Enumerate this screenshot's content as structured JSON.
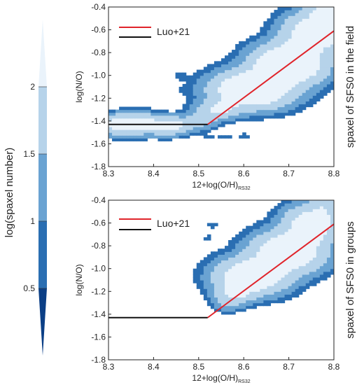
{
  "colorbar": {
    "label": "log(spaxel number)",
    "ticks": [
      "0.5",
      "1",
      "1.5",
      "2"
    ],
    "levels": [
      0.5,
      1,
      1.5,
      2
    ],
    "range": [
      0.0,
      2.5
    ],
    "colors": [
      "#0b3f86",
      "#2a6eb2",
      "#6aa3d2",
      "#b6d3ea",
      "#eaf3fb"
    ]
  },
  "chart_data": [
    {
      "type": "heatmap",
      "panel": "top",
      "side_label": "spaxel of SFS0 in the field",
      "xlabel_main": "12+log(O/H)",
      "xlabel_sub": "RS32",
      "ylabel": "log(N/O)",
      "xlim": [
        8.3,
        8.8
      ],
      "ylim": [
        -1.8,
        -0.4
      ],
      "xticks": [
        "8.3",
        "8.4",
        "8.5",
        "8.6",
        "8.7",
        "8.8"
      ],
      "yticks": [
        "-1.8",
        "-1.6",
        "-1.4",
        "-1.2",
        "-1.0",
        "-0.8",
        "-0.6",
        "-0.4"
      ],
      "legend": {
        "red_label": "",
        "black_label": "Luo+21"
      },
      "lines": {
        "red": [
          [
            8.52,
            -1.43
          ],
          [
            8.8,
            -0.61
          ]
        ],
        "black": [
          [
            8.3,
            -1.43
          ],
          [
            8.52,
            -1.43
          ]
        ]
      },
      "ridge": [
        [
          8.32,
          -1.41
        ],
        [
          8.38,
          -1.4
        ],
        [
          8.44,
          -1.43
        ],
        [
          8.5,
          -1.4
        ],
        [
          8.55,
          -1.28
        ],
        [
          8.6,
          -1.15
        ],
        [
          8.65,
          -1.0
        ],
        [
          8.7,
          -0.84
        ],
        [
          8.74,
          -0.7
        ],
        [
          8.78,
          -0.56
        ],
        [
          8.8,
          -0.47
        ]
      ],
      "blobs": [
        {
          "x": 8.34,
          "y": -1.43,
          "sx": 0.035,
          "sy": 0.05,
          "a": 170
        },
        {
          "x": 8.43,
          "y": -1.44,
          "sx": 0.03,
          "sy": 0.045,
          "a": 110
        },
        {
          "x": 8.62,
          "y": -1.12,
          "sx": 0.05,
          "sy": 0.09,
          "a": 300
        },
        {
          "x": 8.7,
          "y": -0.9,
          "sx": 0.045,
          "sy": 0.1,
          "a": 320
        },
        {
          "x": 8.76,
          "y": -0.62,
          "sx": 0.04,
          "sy": 0.1,
          "a": 220
        },
        {
          "x": 8.78,
          "y": -0.42,
          "sx": 0.025,
          "sy": 0.05,
          "a": 110
        },
        {
          "x": 8.54,
          "y": -1.3,
          "sx": 0.03,
          "sy": 0.05,
          "a": 70
        },
        {
          "x": 8.46,
          "y": -1.01,
          "sx": 0.01,
          "sy": 0.02,
          "a": 8
        },
        {
          "x": 8.47,
          "y": -1.13,
          "sx": 0.01,
          "sy": 0.02,
          "a": 6
        },
        {
          "x": 8.56,
          "y": -1.54,
          "sx": 0.012,
          "sy": 0.02,
          "a": 6
        },
        {
          "x": 8.52,
          "y": -1.54,
          "sx": 0.01,
          "sy": 0.02,
          "a": 5
        },
        {
          "x": 8.6,
          "y": -1.53,
          "sx": 0.01,
          "sy": 0.02,
          "a": 5
        }
      ]
    },
    {
      "type": "heatmap",
      "panel": "bottom",
      "side_label": "spaxel of SFS0 in groups",
      "xlabel_main": "12+log(O/H)",
      "xlabel_sub": "RS32",
      "ylabel": "log(N/O)",
      "xlim": [
        8.3,
        8.8
      ],
      "ylim": [
        -1.8,
        -0.4
      ],
      "xticks": [
        "8.3",
        "8.4",
        "8.5",
        "8.6",
        "8.7",
        "8.8"
      ],
      "yticks": [
        "-1.8",
        "-1.6",
        "-1.4",
        "-1.2",
        "-1.0",
        "-0.8",
        "-0.6",
        "-0.4"
      ],
      "legend": {
        "red_label": "",
        "black_label": "Luo+21"
      },
      "lines": {
        "red": [
          [
            8.52,
            -1.43
          ],
          [
            8.8,
            -0.61
          ]
        ],
        "black": [
          [
            8.3,
            -1.43
          ],
          [
            8.52,
            -1.43
          ]
        ]
      },
      "ridge": [
        [
          8.57,
          -1.28
        ],
        [
          8.6,
          -1.12
        ],
        [
          8.65,
          -1.0
        ],
        [
          8.7,
          -0.86
        ],
        [
          8.75,
          -0.7
        ],
        [
          8.78,
          -0.55
        ]
      ],
      "blobs": [
        {
          "x": 8.62,
          "y": -1.06,
          "sx": 0.045,
          "sy": 0.09,
          "a": 240
        },
        {
          "x": 8.7,
          "y": -0.85,
          "sx": 0.045,
          "sy": 0.1,
          "a": 260
        },
        {
          "x": 8.75,
          "y": -0.6,
          "sx": 0.035,
          "sy": 0.09,
          "a": 180
        },
        {
          "x": 8.58,
          "y": -1.2,
          "sx": 0.025,
          "sy": 0.06,
          "a": 90
        },
        {
          "x": 8.78,
          "y": -0.45,
          "sx": 0.02,
          "sy": 0.04,
          "a": 60
        },
        {
          "x": 8.56,
          "y": -1.3,
          "sx": 0.015,
          "sy": 0.04,
          "a": 20
        },
        {
          "x": 8.53,
          "y": -0.62,
          "sx": 0.01,
          "sy": 0.02,
          "a": 6
        },
        {
          "x": 8.52,
          "y": -0.73,
          "sx": 0.01,
          "sy": 0.02,
          "a": 5
        }
      ]
    }
  ]
}
